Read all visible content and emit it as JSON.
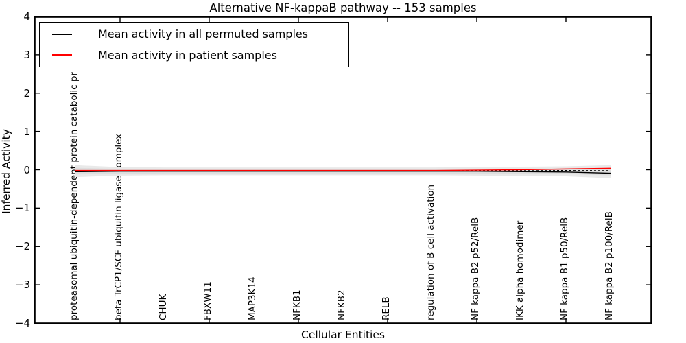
{
  "chart_data": {
    "type": "line",
    "title": "Alternative NF-kappaB pathway -- 153 samples",
    "xlabel": "Cellular Entities",
    "ylabel": "Inferred Activity",
    "ylim": [
      -4,
      4
    ],
    "yticks": [
      {
        "label": "4",
        "value": 4
      },
      {
        "label": "3",
        "value": 3
      },
      {
        "label": "2",
        "value": 2
      },
      {
        "label": "1",
        "value": 1
      },
      {
        "label": "0",
        "value": 0
      },
      {
        "label": "−1",
        "value": -1
      },
      {
        "label": "−2",
        "value": -2
      },
      {
        "label": "−3",
        "value": -3
      },
      {
        "label": "−4",
        "value": -4
      }
    ],
    "categories": [
      "proteasomal ubiquitin-dependent protein catabolic pr",
      "beta TrCP1/SCF ubiquitin ligase complex",
      "CHUK",
      "FBXW11",
      "MAP3K14",
      "NFKB1",
      "NFKB2",
      "RELB",
      "regulation of B cell activation",
      "NF kappa B2 p52/RelB",
      "IKK alpha homodimer",
      "NF kappa B1 p50/RelB",
      "NF kappa B2 p100/RelB"
    ],
    "series": [
      {
        "name": "Mean activity in all permuted samples",
        "color": "#000000",
        "values": [
          -0.05,
          -0.04,
          -0.04,
          -0.04,
          -0.04,
          -0.04,
          -0.04,
          -0.04,
          -0.04,
          -0.04,
          -0.05,
          -0.06,
          -0.09
        ]
      },
      {
        "name": "Mean activity in patient samples",
        "color": "#ff0000",
        "values": [
          -0.02,
          -0.02,
          -0.02,
          -0.02,
          -0.02,
          -0.02,
          -0.02,
          -0.02,
          -0.02,
          -0.01,
          0.0,
          0.02,
          0.04
        ]
      }
    ],
    "band": {
      "color": "#e9e9e9",
      "inner_color": "#dedede",
      "upper": [
        0.12,
        0.07,
        0.06,
        0.06,
        0.06,
        0.06,
        0.06,
        0.06,
        0.06,
        0.07,
        0.08,
        0.09,
        0.12
      ],
      "lower": [
        -0.19,
        -0.15,
        -0.14,
        -0.14,
        -0.14,
        -0.14,
        -0.14,
        -0.14,
        -0.14,
        -0.15,
        -0.16,
        -0.17,
        -0.22
      ]
    },
    "legend_position": "upper left",
    "grid": false,
    "axis_color": "#000000"
  }
}
